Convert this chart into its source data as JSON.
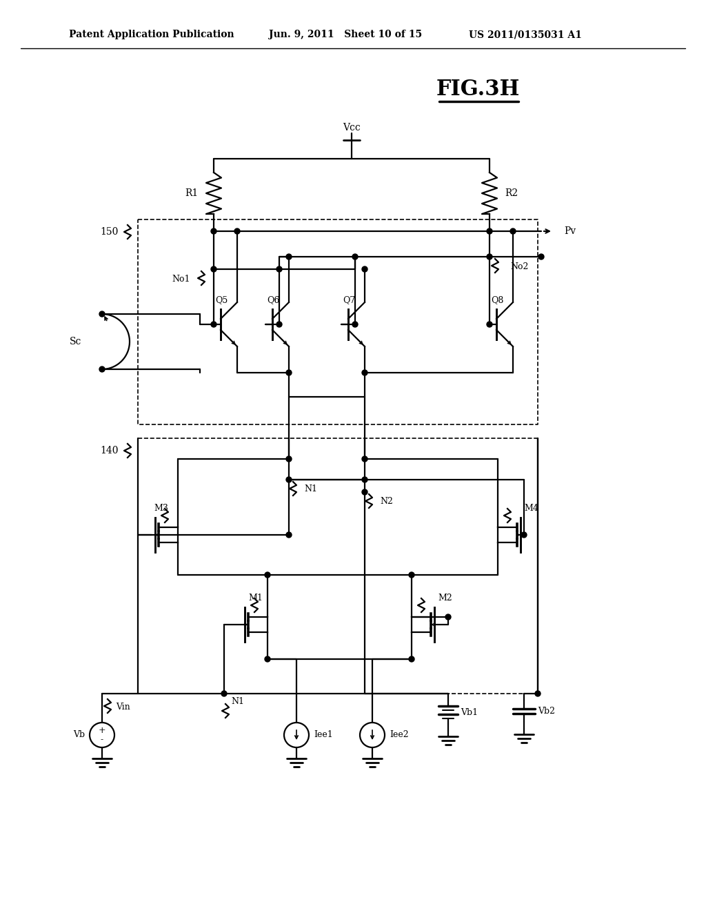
{
  "bg_color": "#ffffff",
  "header_left": "Patent Application Publication",
  "header_mid": "Jun. 9, 2011   Sheet 10 of 15",
  "header_right": "US 2011/0135031 A1",
  "title": "FIG.3H"
}
